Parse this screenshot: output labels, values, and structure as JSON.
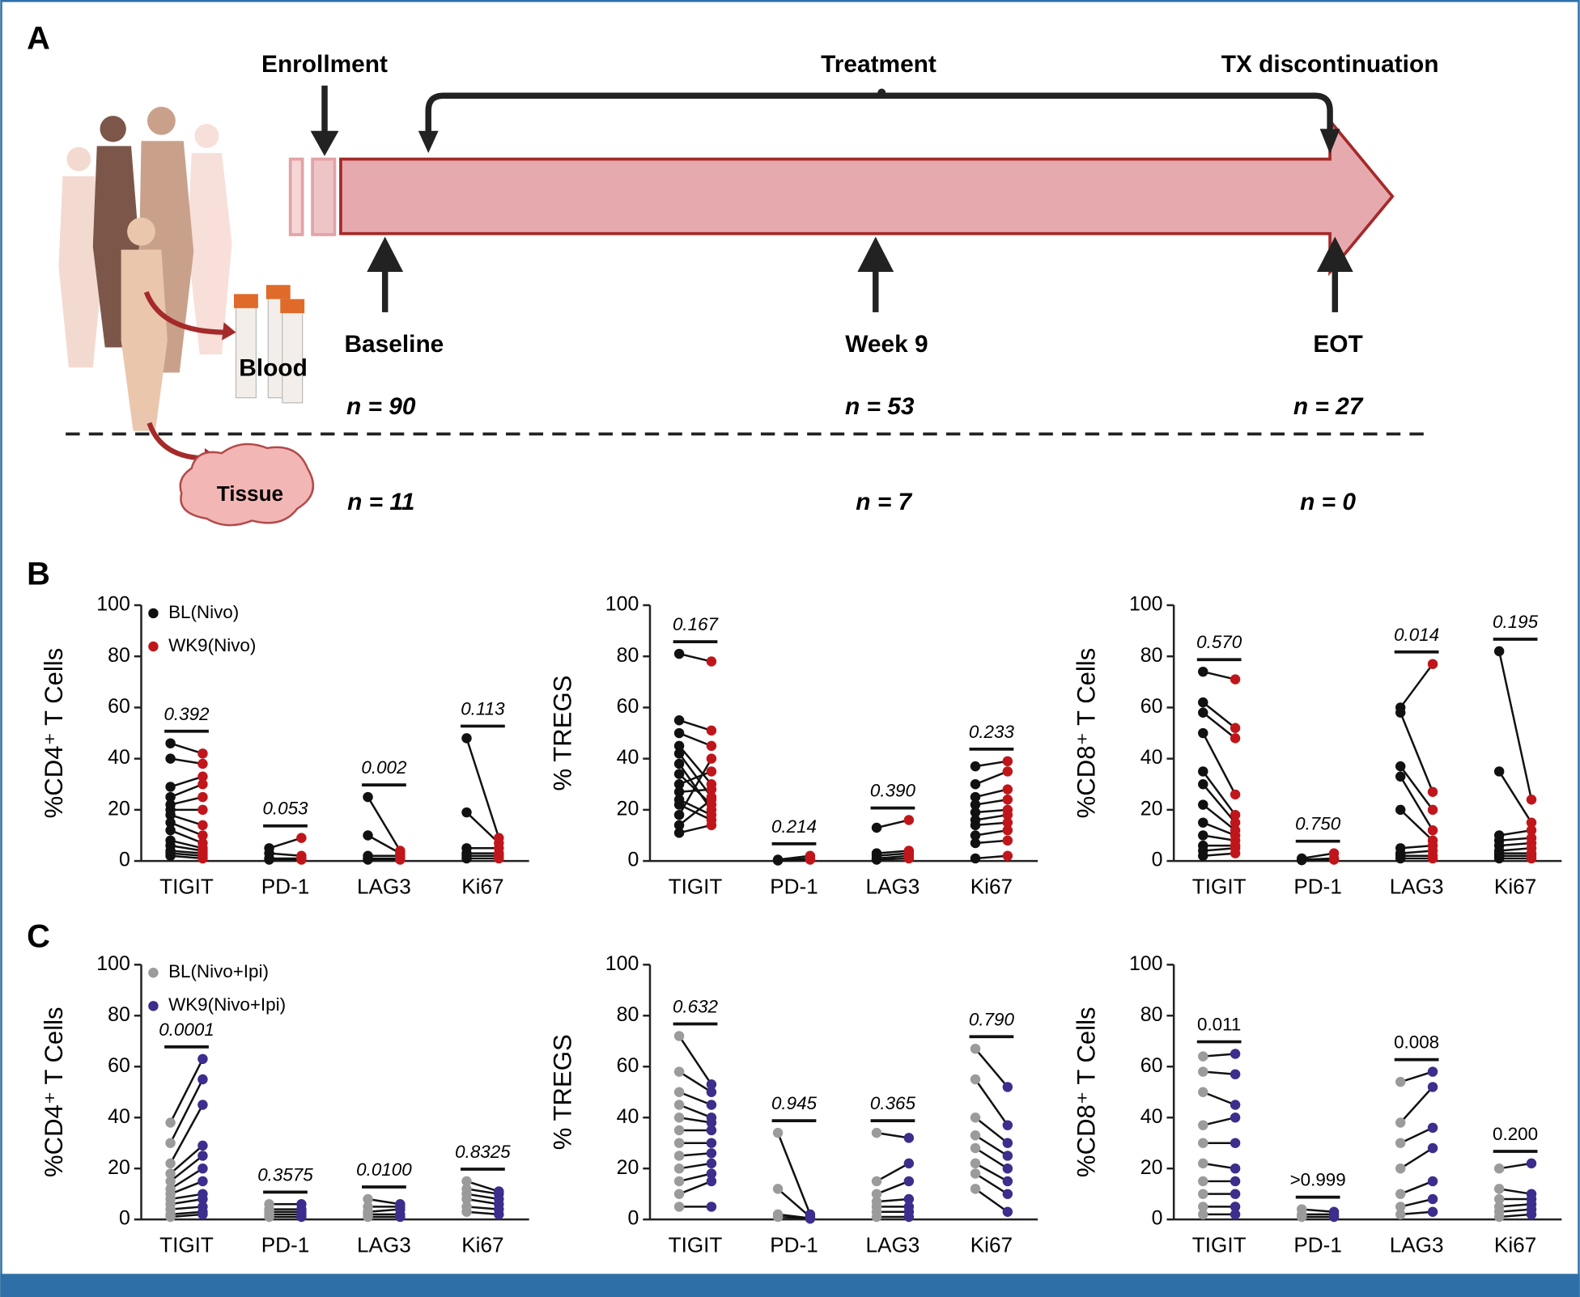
{
  "panel_labels": [
    "A",
    "B",
    "C"
  ],
  "panel_a": {
    "enrollment": "Enrollment",
    "treatment": "Treatment",
    "discontinuation": "TX discontinuation",
    "timepoints": [
      "Baseline",
      "Week 9",
      "EOT"
    ],
    "blood": {
      "label": "Blood",
      "n": [
        "n = 90",
        "n = 53",
        "n = 27"
      ]
    },
    "tissue": {
      "label": "Tissue",
      "n": [
        "n = 11",
        "n = 7",
        "n = 0"
      ]
    }
  },
  "chart_data": [
    {
      "type": "paired_dot",
      "ylabel": "%CD4⁺ T Cells",
      "ylim": [
        0,
        100
      ],
      "yticks": [
        0,
        20,
        40,
        60,
        80,
        100
      ],
      "categories": [
        "TIGIT",
        "PD-1",
        "LAG3",
        "Ki67"
      ],
      "legend": "upper left",
      "pvalue_italic": true,
      "pvalues": [
        "0.392",
        "0.053",
        "0.002",
        "0.113"
      ],
      "series": [
        {
          "name": "BL(Nivo)",
          "color": "#111111",
          "values": [
            [
              46,
              40,
              29,
              25,
              22,
              20,
              18,
              15,
              12,
              8,
              6,
              4,
              3,
              2
            ],
            [
              5,
              3,
              1,
              0.5
            ],
            [
              25,
              10,
              2,
              1,
              0.5
            ],
            [
              48,
              19,
              5,
              3,
              2,
              1
            ]
          ]
        },
        {
          "name": "WK9(Nivo)",
          "color": "#c0161b",
          "values": [
            [
              42,
              38,
              33,
              30,
              25,
              20,
              14,
              10,
              7,
              5,
              4,
              3,
              2,
              1
            ],
            [
              9,
              2,
              1,
              0.5
            ],
            [
              4,
              3,
              2,
              1,
              0.5
            ],
            [
              9,
              7,
              5,
              3,
              2,
              1
            ]
          ]
        }
      ]
    },
    {
      "type": "paired_dot",
      "ylabel": "% TREGS",
      "ylim": [
        0,
        100
      ],
      "yticks": [
        0,
        20,
        40,
        60,
        80,
        100
      ],
      "categories": [
        "TIGIT",
        "PD-1",
        "LAG3",
        "Ki67"
      ],
      "pvalue_italic": true,
      "pvalues": [
        "0.167",
        "0.214",
        "0.390",
        "0.233"
      ],
      "series": [
        {
          "color": "#111111",
          "values": [
            [
              81,
              55,
              50,
              45,
              42,
              38,
              34,
              30,
              27,
              24,
              22,
              18,
              14,
              11
            ],
            [
              0.5,
              0.3,
              0.2
            ],
            [
              13,
              3,
              2,
              1,
              0.5
            ],
            [
              37,
              30,
              25,
              22,
              19,
              16,
              14,
              10,
              7,
              1
            ]
          ]
        },
        {
          "color": "#c0161b",
          "values": [
            [
              78,
              51,
              45,
              30,
              25,
              20,
              22,
              35,
              28,
              18,
              16,
              40,
              24,
              14
            ],
            [
              2,
              1,
              0.5
            ],
            [
              16,
              4,
              3,
              2,
              1
            ],
            [
              39,
              35,
              28,
              24,
              20,
              18,
              15,
              12,
              8,
              2
            ]
          ]
        }
      ]
    },
    {
      "type": "paired_dot",
      "ylabel": "%CD8⁺ T Cells",
      "ylim": [
        0,
        100
      ],
      "yticks": [
        0,
        20,
        40,
        60,
        80,
        100
      ],
      "categories": [
        "TIGIT",
        "PD-1",
        "LAG3",
        "Ki67"
      ],
      "pvalue_italic": true,
      "pvalues": [
        "0.570",
        "0.750",
        "0.014",
        "0.195"
      ],
      "series": [
        {
          "color": "#111111",
          "values": [
            [
              74,
              62,
              58,
              50,
              35,
              30,
              22,
              15,
              10,
              6,
              4,
              2
            ],
            [
              1,
              0.5,
              0.3
            ],
            [
              60,
              58,
              37,
              33,
              20,
              5,
              3,
              2,
              1
            ],
            [
              82,
              35,
              10,
              8,
              6,
              4,
              3,
              2,
              1
            ]
          ]
        },
        {
          "color": "#c0161b",
          "values": [
            [
              71,
              52,
              48,
              26,
              18,
              15,
              12,
              10,
              8,
              6,
              5,
              3
            ],
            [
              3,
              1,
              0.5
            ],
            [
              77,
              27,
              20,
              12,
              8,
              6,
              4,
              2,
              1
            ],
            [
              24,
              15,
              12,
              9,
              7,
              5,
              3,
              2,
              1
            ]
          ]
        }
      ]
    },
    {
      "type": "paired_dot",
      "ylabel": "%CD4⁺ T Cells",
      "ylim": [
        0,
        100
      ],
      "yticks": [
        0,
        20,
        40,
        60,
        80,
        100
      ],
      "categories": [
        "TIGIT",
        "PD-1",
        "LAG3",
        "Ki67"
      ],
      "legend": "upper left",
      "pvalue_italic": true,
      "pvalues": [
        "0.0001",
        "0.3575",
        "0.0100",
        "0.8325"
      ],
      "series": [
        {
          "name": "BL(Nivo+Ipi)",
          "color": "#9b9b9b",
          "values": [
            [
              38,
              30,
              22,
              18,
              15,
              12,
              10,
              8,
              6,
              4,
              2,
              1
            ],
            [
              6,
              4,
              3,
              2,
              1
            ],
            [
              8,
              5,
              3,
              2,
              1
            ],
            [
              15,
              12,
              10,
              8,
              5,
              3
            ]
          ]
        },
        {
          "name": "WK9(Nivo+Ipi)",
          "color": "#3b2e8c",
          "values": [
            [
              63,
              55,
              45,
              29,
              25,
              20,
              15,
              10,
              8,
              5,
              3,
              2
            ],
            [
              6,
              4,
              3,
              2,
              1
            ],
            [
              6,
              5,
              4,
              2,
              1
            ],
            [
              11,
              10,
              8,
              6,
              4,
              2
            ]
          ]
        }
      ]
    },
    {
      "type": "paired_dot",
      "ylabel": "% TREGS",
      "ylim": [
        0,
        100
      ],
      "yticks": [
        0,
        20,
        40,
        60,
        80,
        100
      ],
      "categories": [
        "TIGIT",
        "PD-1",
        "LAG3",
        "Ki67"
      ],
      "pvalue_italic": true,
      "pvalues": [
        "0.632",
        "0.945",
        "0.365",
        "0.790"
      ],
      "series": [
        {
          "color": "#9b9b9b",
          "values": [
            [
              72,
              58,
              50,
              45,
              40,
              35,
              30,
              25,
              20,
              15,
              10,
              5
            ],
            [
              34,
              12,
              2,
              1
            ],
            [
              34,
              15,
              10,
              7,
              5,
              3,
              1
            ],
            [
              67,
              55,
              40,
              33,
              28,
              22,
              18,
              12
            ]
          ]
        },
        {
          "color": "#3b2e8c",
          "values": [
            [
              53,
              50,
              45,
              40,
              38,
              35,
              30,
              26,
              22,
              18,
              15,
              5
            ],
            [
              2,
              1,
              0.5,
              0.3
            ],
            [
              32,
              22,
              15,
              8,
              5,
              3,
              1
            ],
            [
              52,
              37,
              30,
              25,
              20,
              15,
              10,
              3
            ]
          ]
        }
      ]
    },
    {
      "type": "paired_dot",
      "ylabel": "%CD8⁺ T Cells",
      "ylim": [
        0,
        100
      ],
      "yticks": [
        0,
        20,
        40,
        60,
        80,
        100
      ],
      "categories": [
        "TIGIT",
        "PD-1",
        "LAG3",
        "Ki67"
      ],
      "pvalue_italic": false,
      "pvalues": [
        "0.011",
        ">0.999",
        "0.008",
        "0.200"
      ],
      "series": [
        {
          "color": "#9b9b9b",
          "values": [
            [
              64,
              58,
              50,
              37,
              30,
              22,
              15,
              10,
              5,
              2
            ],
            [
              4,
              2,
              1
            ],
            [
              54,
              38,
              30,
              20,
              10,
              5,
              2
            ],
            [
              20,
              12,
              8,
              5,
              3,
              1
            ]
          ]
        },
        {
          "color": "#3b2e8c",
          "values": [
            [
              65,
              57,
              45,
              40,
              30,
              20,
              15,
              10,
              5,
              2
            ],
            [
              3,
              2,
              1
            ],
            [
              58,
              52,
              36,
              28,
              15,
              8,
              3
            ],
            [
              22,
              10,
              8,
              6,
              4,
              2
            ]
          ]
        }
      ]
    }
  ]
}
